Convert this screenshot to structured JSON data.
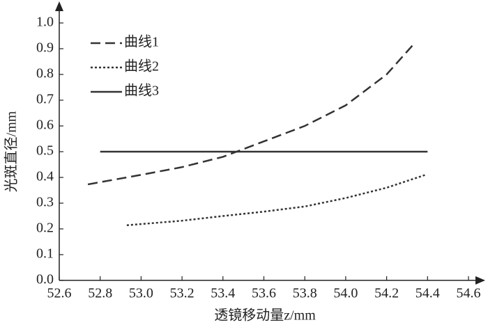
{
  "chart_data": {
    "type": "line",
    "xlabel": "透镜移动量z/mm",
    "ylabel": "光斑直径/mm",
    "xlim": [
      52.6,
      54.6
    ],
    "xticks": [
      52.6,
      52.8,
      {
        "value": 53,
        "label": "53.0"
      },
      53.2,
      53.4,
      53.6,
      53.8,
      {
        "value": 54,
        "label": "54.0"
      },
      54.2,
      54.4,
      54.6
    ],
    "ylim": [
      0,
      1
    ],
    "yticks": [
      {
        "value": 0,
        "label": "0.0"
      },
      0.1,
      0.2,
      0.3,
      0.4,
      0.5,
      0.6,
      0.7,
      0.8,
      0.9,
      {
        "value": 1,
        "label": "1.0"
      }
    ],
    "grid": false,
    "legend": "upper left",
    "series": [
      {
        "name": "曲线1",
        "color": "#333333",
        "line_style": "dashed",
        "x": [
          52.74,
          53.0,
          53.2,
          53.4,
          53.6,
          53.8,
          54.0,
          54.2,
          54.33
        ],
        "values": [
          0.373,
          0.41,
          0.44,
          0.48,
          0.54,
          0.6,
          0.68,
          0.8,
          0.916
        ]
      },
      {
        "name": "曲线2",
        "color": "#333333",
        "line_style": "dotted",
        "x": [
          52.93,
          53.2,
          53.4,
          53.6,
          53.8,
          54.0,
          54.2,
          54.39
        ],
        "values": [
          0.214,
          0.232,
          0.25,
          0.267,
          0.287,
          0.32,
          0.36,
          0.41
        ]
      },
      {
        "name": "曲线3",
        "color": "#333333",
        "line_style": "solid",
        "x": [
          52.8,
          54.4
        ],
        "values": [
          0.5,
          0.5
        ]
      }
    ]
  }
}
